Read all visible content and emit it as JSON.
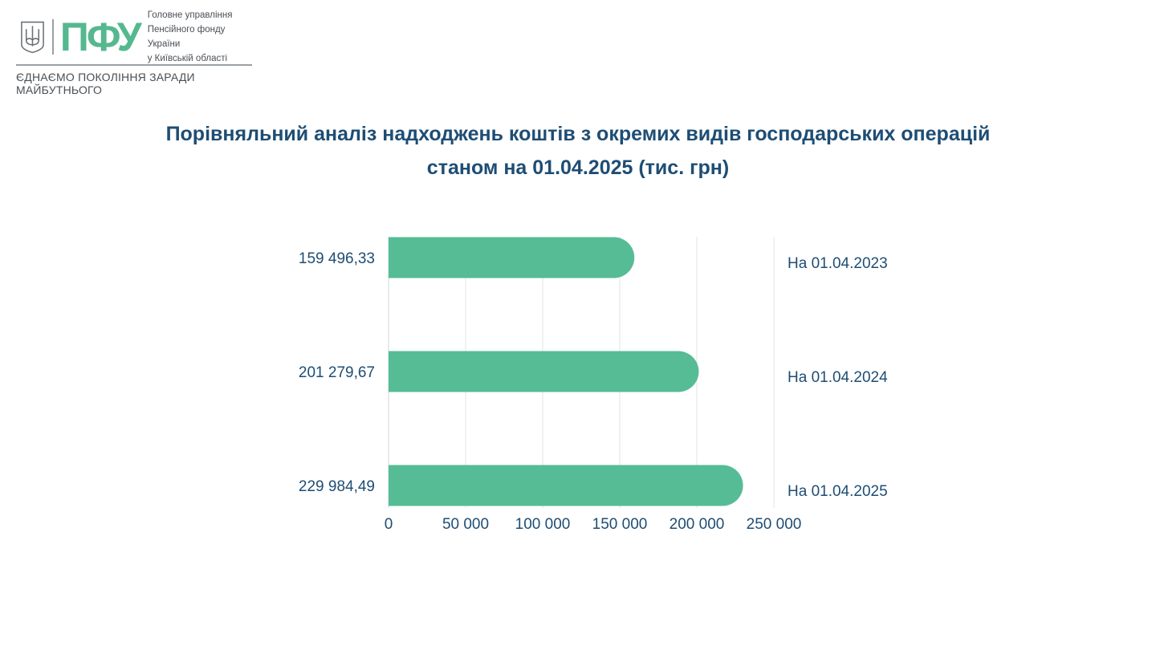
{
  "header": {
    "brand": "ПФУ",
    "org_lines": [
      "Головне управління",
      "Пенсійного фонду України",
      "у Київській області"
    ],
    "slogan": "ЄДНАЄМО ПОКОЛІННЯ ЗАРАДИ МАЙБУТНЬОГО"
  },
  "colors": {
    "bar": "#55bc96",
    "title": "#1e4d74",
    "grid": "#e3e3e3",
    "brand": "#55b88f"
  },
  "chart_data": {
    "type": "bar",
    "orientation": "horizontal",
    "title_lines": [
      "Порівняльний аналіз надходжень коштів з окремих видів господарських операцій",
      "станом на 01.04.2025 (тис. грн)"
    ],
    "categories": [
      "На 01.04.2023",
      "На 01.04.2024",
      "На 01.04.2025"
    ],
    "values": [
      159496.33,
      201279.67,
      229984.49
    ],
    "value_labels": [
      "159 496,33",
      "201 279,67",
      "229 984,49"
    ],
    "xlim": [
      0,
      250000
    ],
    "x_ticks": [
      0,
      50000,
      100000,
      150000,
      200000,
      250000
    ],
    "x_tick_labels": [
      "0",
      "50 000",
      "100 000",
      "150 000",
      "200 000",
      "250 000"
    ],
    "grid": true,
    "legend": "none"
  }
}
